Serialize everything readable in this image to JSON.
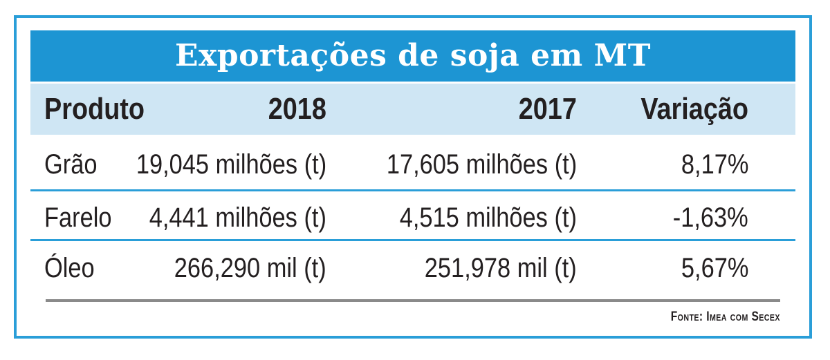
{
  "chart_data": {
    "type": "table",
    "title": "Exportações de soja em MT",
    "columns": [
      "Produto",
      "2018",
      "2017",
      "Variação"
    ],
    "rows": [
      [
        "Grão",
        "19,045 milhões (t)",
        "17,605 milhões (t)",
        "8,17%"
      ],
      [
        "Farelo",
        "4,441 milhões (t)",
        "4,515 milhões (t)",
        "-1,63%"
      ],
      [
        "Óleo",
        "266,290 mil (t)",
        "251,978 mil (t)",
        "5,67%"
      ]
    ],
    "source": "Fonte: Imea com Secex"
  },
  "colors": {
    "accent": "#1d95d3",
    "header_background": "#cfe6f4",
    "text": "#231f20",
    "rule": "#8a8a8a"
  }
}
